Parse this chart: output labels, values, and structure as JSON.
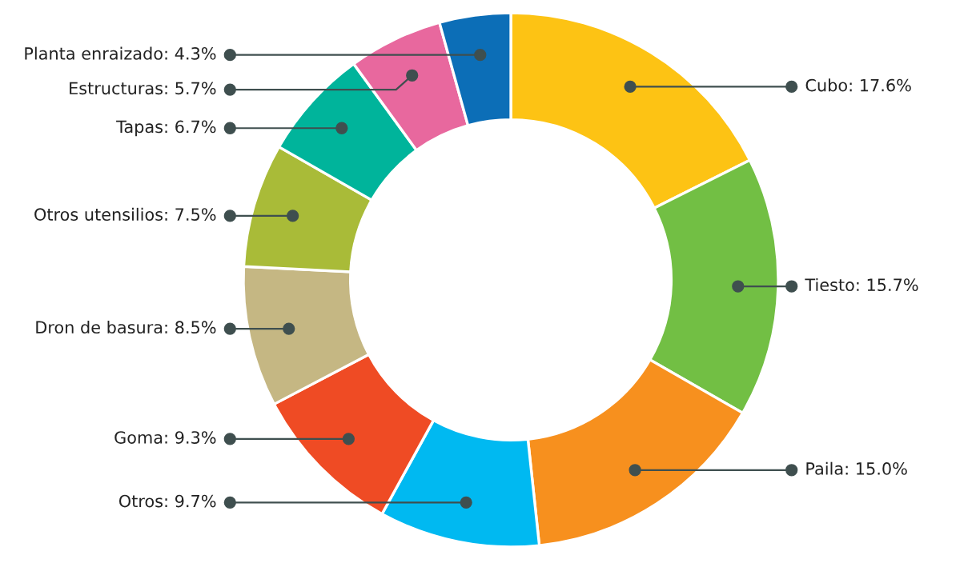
{
  "chart_data": {
    "type": "donut",
    "categories": [
      "Cubo",
      "Tiesto",
      "Paila",
      "Otros",
      "Goma",
      "Dron de basura",
      "Otros utensilios",
      "Tapas",
      "Estructuras",
      "Planta enraizado"
    ],
    "values": [
      17.6,
      15.7,
      15.0,
      9.7,
      9.3,
      8.5,
      7.5,
      6.7,
      5.7,
      4.3
    ],
    "value_labels": [
      "17.6%",
      "15.7%",
      "15.0%",
      "9.7%",
      "9.3%",
      "8.5%",
      "7.5%",
      "6.7%",
      "5.7%",
      "4.3%"
    ],
    "colors": [
      "#fdc314",
      "#72bf44",
      "#f7901e",
      "#00b9f1",
      "#ef4b24",
      "#c5b783",
      "#a9bb38",
      "#00b49b",
      "#e8689e",
      "#0c6eb7"
    ],
    "legend": false
  }
}
